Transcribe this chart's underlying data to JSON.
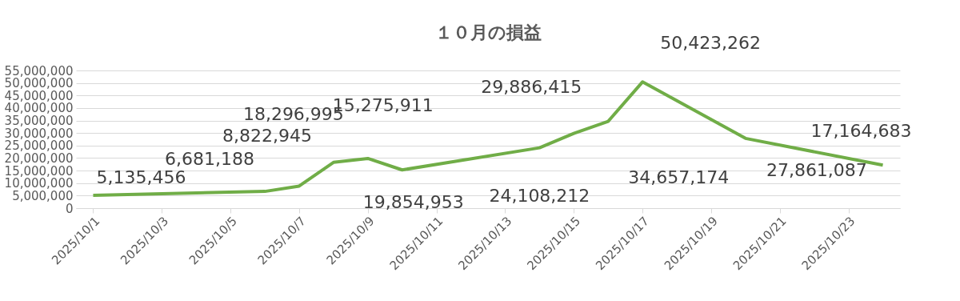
{
  "chart_data": {
    "type": "line",
    "title": "１０月の損益",
    "x": [
      "2025-10-01",
      "2025-10-06",
      "2025-10-07",
      "2025-10-08",
      "2025-10-09",
      "2025-10-10",
      "2025-10-14",
      "2025-10-15",
      "2025-10-16",
      "2025-10-17",
      "2025-10-20",
      "2025-10-24"
    ],
    "series": [
      {
        "color": "#70ad47",
        "values": [
          5135456,
          6681188,
          8822945,
          18296995,
          19854953,
          15275911,
          24108212,
          29886415,
          34657174,
          50423262,
          27861087,
          17164683
        ],
        "value_labels": [
          "5,135,456",
          "6,681,188",
          "8,822,945",
          "18,296,995",
          "19,854,953",
          "15,275,911",
          "24,108,212",
          "29,886,415",
          "34,657,174",
          "50,423,262",
          "27,861,087",
          "17,164,683"
        ]
      }
    ],
    "xlim": [
      "2025-09-30T12:00",
      "2025-10-24T12:00"
    ],
    "xticks": [
      {
        "value": "2025-10-01",
        "label": "2025/10/1"
      },
      {
        "value": "2025-10-03",
        "label": "2025/10/3"
      },
      {
        "value": "2025-10-05",
        "label": "2025/10/5"
      },
      {
        "value": "2025-10-07",
        "label": "2025/10/7"
      },
      {
        "value": "2025-10-09",
        "label": "2025/10/9"
      },
      {
        "value": "2025-10-11",
        "label": "2025/10/11"
      },
      {
        "value": "2025-10-13",
        "label": "2025/10/13"
      },
      {
        "value": "2025-10-15",
        "label": "2025/10/15"
      },
      {
        "value": "2025-10-17",
        "label": "2025/10/17"
      },
      {
        "value": "2025-10-19",
        "label": "2025/10/19"
      },
      {
        "value": "2025-10-21",
        "label": "2025/10/21"
      },
      {
        "value": "2025-10-23",
        "label": "2025/10/23"
      }
    ],
    "ylim": [
      0,
      55000000
    ],
    "yticks": [
      0,
      {
        "value": 5000000,
        "label": "5,000,000"
      },
      {
        "value": 10000000,
        "label": "10,000,000"
      },
      {
        "value": 15000000,
        "label": "15,000,000"
      },
      {
        "value": 20000000,
        "label": "20,000,000"
      },
      {
        "value": 25000000,
        "label": "25,000,000"
      },
      {
        "value": 30000000,
        "label": "30,000,000"
      },
      {
        "value": 35000000,
        "label": "35,000,000"
      },
      {
        "value": 40000000,
        "label": "40,000,000"
      },
      {
        "value": 45000000,
        "label": "45,000,000"
      },
      {
        "value": 50000000,
        "label": "50,000,000"
      },
      {
        "value": 55000000,
        "label": "55,000,000"
      }
    ],
    "grid": "y",
    "marker": "none",
    "line_style": "solid",
    "legend": false
  }
}
